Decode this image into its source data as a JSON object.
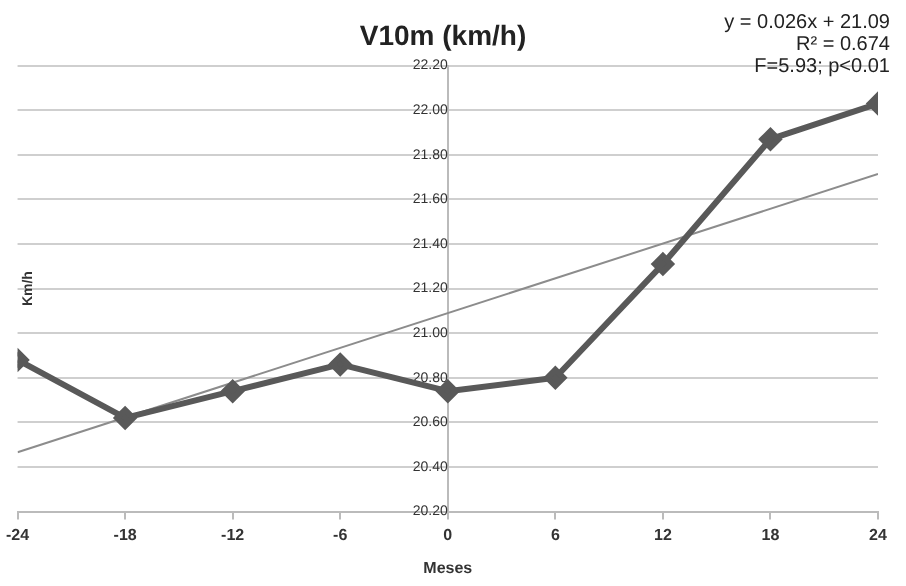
{
  "chart_data": {
    "type": "line",
    "title": "V10m (km/h)",
    "xlabel": "Meses",
    "ylabel": "Km/h",
    "x": [
      -24,
      -18,
      -12,
      -6,
      0,
      6,
      12,
      18,
      24
    ],
    "series": [
      {
        "color": "#595959",
        "values": [
          20.88,
          20.62,
          20.74,
          20.86,
          20.74,
          20.8,
          21.31,
          21.87,
          22.03
        ]
      },
      {
        "type": "line",
        "color": "#8c8c8c",
        "x": [
          -24,
          24
        ],
        "values": [
          20.466,
          21.714
        ],
        "marker": "none"
      }
    ],
    "marker": "diamond",
    "line_style": "solid",
    "xlim": [
      -24,
      24
    ],
    "xticks": [
      -24,
      -18,
      -12,
      -6,
      0,
      6,
      12,
      18,
      24
    ],
    "ylim": [
      20.2,
      22.2
    ],
    "yticks": [
      {
        "value": 20.2,
        "label": "20.20"
      },
      {
        "value": 20.4,
        "label": "20.40"
      },
      {
        "value": 20.6,
        "label": "20.60"
      },
      {
        "value": 20.8,
        "label": "20.80"
      },
      {
        "value": 21.0,
        "label": "21.00"
      },
      {
        "value": 21.2,
        "label": "21.20"
      },
      {
        "value": 21.4,
        "label": "21.40"
      },
      {
        "value": 21.6,
        "label": "21.60"
      },
      {
        "value": 21.8,
        "label": "21.80"
      },
      {
        "value": 22.0,
        "label": "22.00"
      },
      {
        "value": 22.2,
        "label": "22.20"
      }
    ],
    "grid": "y",
    "legend": false,
    "annotations": [
      "y = 0.026x + 21.09",
      "R² = 0.674",
      "F=5.93; p<0.01"
    ]
  }
}
